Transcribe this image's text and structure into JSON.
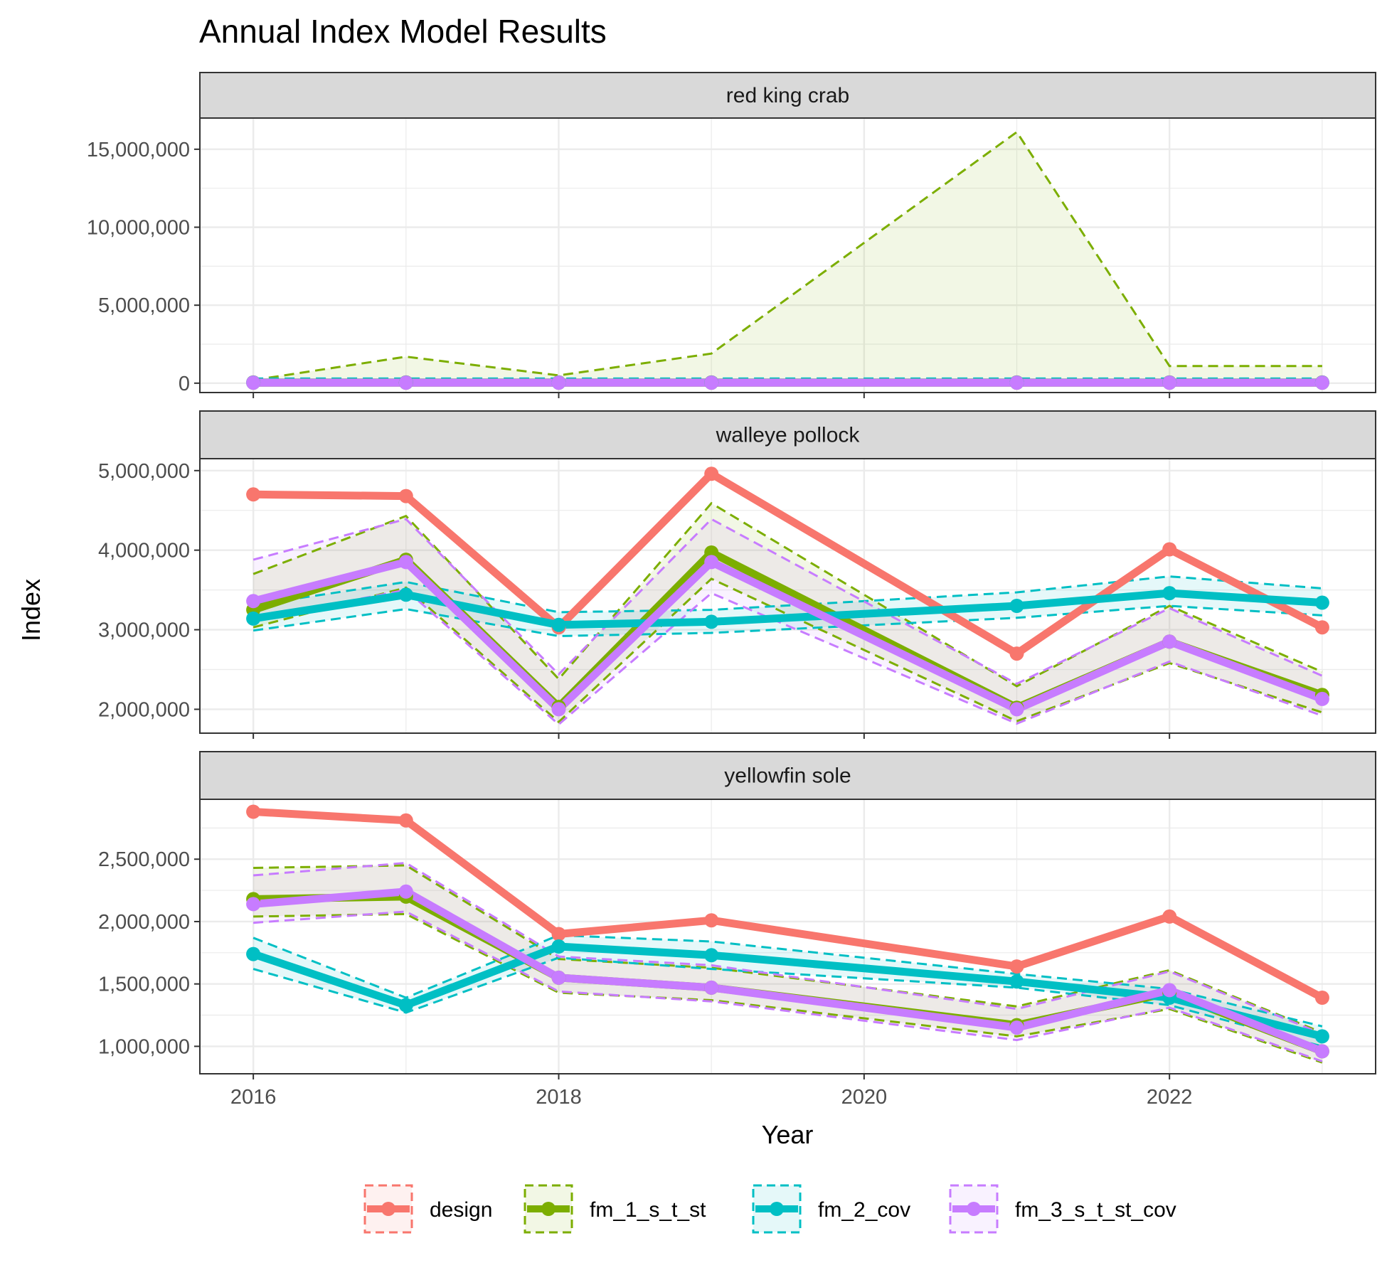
{
  "chart_data": {
    "type": "line",
    "title": "Annual Index Model Results",
    "xlabel": "Year",
    "ylabel": "Index",
    "xlim": [
      2015.65,
      2023.35
    ],
    "x_ticks": [
      2016,
      2018,
      2020,
      2022
    ],
    "x_tick_labels": [
      "2016",
      "2018",
      "2020",
      "2022"
    ],
    "years": [
      2016,
      2017,
      2018,
      2019,
      2021,
      2022,
      2023
    ],
    "grid": true,
    "legend_position": "bottom",
    "series_styles": [
      {
        "name": "design",
        "color": "#F8766D"
      },
      {
        "name": "fm_1_s_t_st",
        "color": "#7CAE00"
      },
      {
        "name": "fm_2_cov",
        "color": "#00BFC4"
      },
      {
        "name": "fm_3_s_t_st_cov",
        "color": "#C77CFF"
      }
    ],
    "panels": [
      {
        "strip": "red king crab",
        "ylim": [
          -600000,
          17000000
        ],
        "y_ticks": [
          0,
          5000000,
          10000000,
          15000000
        ],
        "y_tick_labels": [
          "0",
          "5,000,000",
          "10,000,000",
          "15,000,000"
        ],
        "series": [
          {
            "name": "design",
            "values": [
              50000,
              50000,
              50000,
              50000,
              50000,
              50000,
              50000
            ],
            "lower": null,
            "upper": null
          },
          {
            "name": "fm_1_s_t_st",
            "values": [
              30000,
              30000,
              30000,
              30000,
              30000,
              30000,
              30000
            ],
            "lower": [
              10000,
              10000,
              10000,
              10000,
              10000,
              10000,
              10000
            ],
            "upper": [
              200000,
              1700000,
              500000,
              1900000,
              16100000,
              1100000,
              1100000
            ]
          },
          {
            "name": "fm_2_cov",
            "values": [
              40000,
              40000,
              40000,
              40000,
              40000,
              40000,
              40000
            ],
            "lower": [
              20000,
              20000,
              20000,
              20000,
              20000,
              20000,
              20000
            ],
            "upper": [
              300000,
              300000,
              300000,
              300000,
              300000,
              300000,
              300000
            ]
          },
          {
            "name": "fm_3_s_t_st_cov",
            "values": [
              30000,
              30000,
              30000,
              30000,
              30000,
              30000,
              30000
            ],
            "lower": [
              10000,
              10000,
              10000,
              10000,
              10000,
              10000,
              10000
            ],
            "upper": [
              80000,
              80000,
              80000,
              80000,
              80000,
              80000,
              80000
            ]
          }
        ]
      },
      {
        "strip": "walleye pollock",
        "ylim": [
          1700000,
          5150000
        ],
        "y_ticks": [
          2000000,
          3000000,
          4000000,
          5000000
        ],
        "y_tick_labels": [
          "2,000,000",
          "3,000,000",
          "4,000,000",
          "5,000,000"
        ],
        "series": [
          {
            "name": "design",
            "values": [
              4700000,
              4680000,
              3030000,
              4960000,
              2700000,
              4010000,
              3030000
            ],
            "lower": null,
            "upper": null
          },
          {
            "name": "fm_1_s_t_st",
            "values": [
              3250000,
              3880000,
              2030000,
              3970000,
              2020000,
              2850000,
              2180000
            ],
            "lower": [
              3030000,
              3530000,
              1840000,
              3640000,
              1850000,
              2580000,
              1960000
            ],
            "upper": [
              3700000,
              4430000,
              2380000,
              4590000,
              2290000,
              3300000,
              2470000
            ]
          },
          {
            "name": "fm_2_cov",
            "values": [
              3140000,
              3440000,
              3060000,
              3100000,
              3300000,
              3460000,
              3340000
            ],
            "lower": [
              2990000,
              3260000,
              2920000,
              2960000,
              3150000,
              3300000,
              3180000
            ],
            "upper": [
              3310000,
              3600000,
              3220000,
              3250000,
              3470000,
              3670000,
              3520000
            ]
          },
          {
            "name": "fm_3_s_t_st_cov",
            "values": [
              3360000,
              3850000,
              2000000,
              3850000,
              2000000,
              2850000,
              2130000
            ],
            "lower": [
              3130000,
              3500000,
              1810000,
              3460000,
              1820000,
              2600000,
              1920000
            ],
            "upper": [
              3880000,
              4390000,
              2440000,
              4390000,
              2320000,
              3270000,
              2420000
            ]
          }
        ]
      },
      {
        "strip": "yellowfin sole",
        "ylim": [
          780000,
          2980000
        ],
        "y_ticks": [
          1000000,
          1500000,
          2000000,
          2500000
        ],
        "y_tick_labels": [
          "1,000,000",
          "1,500,000",
          "2,000,000",
          "2,500,000"
        ],
        "series": [
          {
            "name": "design",
            "values": [
              2880000,
              2810000,
              1900000,
              2010000,
              1640000,
              2040000,
              1390000
            ],
            "lower": null,
            "upper": null
          },
          {
            "name": "fm_1_s_t_st",
            "values": [
              2180000,
              2200000,
              1550000,
              1470000,
              1170000,
              1430000,
              960000
            ],
            "lower": [
              2040000,
              2060000,
              1430000,
              1370000,
              1080000,
              1300000,
              870000
            ],
            "upper": [
              2430000,
              2450000,
              1700000,
              1630000,
              1320000,
              1610000,
              1110000
            ]
          },
          {
            "name": "fm_2_cov",
            "values": [
              1740000,
              1330000,
              1800000,
              1730000,
              1520000,
              1390000,
              1080000
            ],
            "lower": [
              1620000,
              1270000,
              1710000,
              1620000,
              1470000,
              1330000,
              1000000
            ],
            "upper": [
              1870000,
              1390000,
              1890000,
              1840000,
              1580000,
              1460000,
              1160000
            ]
          },
          {
            "name": "fm_3_s_t_st_cov",
            "values": [
              2140000,
              2240000,
              1550000,
              1470000,
              1150000,
              1450000,
              960000
            ],
            "lower": [
              1990000,
              2080000,
              1440000,
              1360000,
              1050000,
              1310000,
              880000
            ],
            "upper": [
              2370000,
              2470000,
              1720000,
              1650000,
              1300000,
              1600000,
              1100000
            ]
          }
        ]
      }
    ]
  }
}
